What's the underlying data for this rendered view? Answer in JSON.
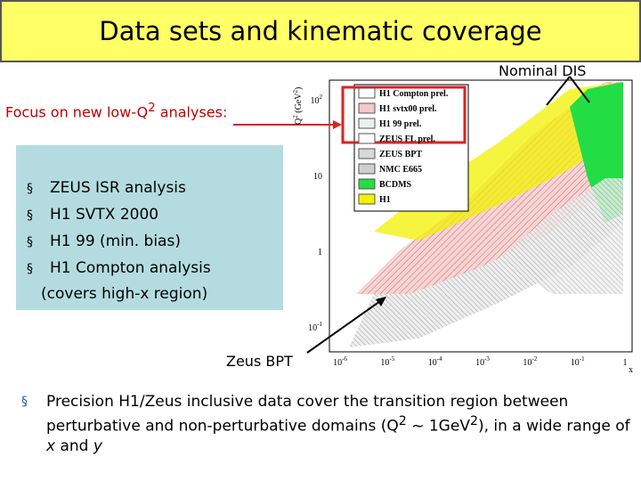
{
  "title": "Data sets and kinematic coverage",
  "annotations": {
    "nominal_dis": "Nominal DIS",
    "zeus_bpt": "Zeus BPT",
    "focus": {
      "text": "Focus on new low-Q",
      "sup": "2",
      "tail": " analyses:"
    }
  },
  "box": {
    "items": [
      "ZEUS ISR analysis",
      "H1 SVTX 2000",
      "H1 99  (min. bias)",
      "H1 Compton analysis"
    ],
    "note": "(covers high-x region)"
  },
  "plot": {
    "y_label": {
      "text": "Q",
      "sup": "2",
      "tail": " (GeV",
      "sup2": "2",
      "end": ")"
    },
    "x_label": "x",
    "y_ticks": [
      {
        "base": "10",
        "exp": "2"
      },
      {
        "base": "10"
      },
      {
        "base": "1"
      },
      {
        "base": "10",
        "exp": "-1"
      }
    ],
    "x_ticks": [
      {
        "base": "10",
        "exp": "-6"
      },
      {
        "base": "10",
        "exp": "-5"
      },
      {
        "base": "10",
        "exp": "-4"
      },
      {
        "base": "10",
        "exp": "-3"
      },
      {
        "base": "10",
        "exp": "-2"
      },
      {
        "base": "10",
        "exp": "-1"
      },
      {
        "base": "1"
      }
    ],
    "legend": [
      {
        "label": "H1 Compton prel.",
        "color": "#ffffff"
      },
      {
        "label": "H1 svtx00 prel.",
        "color": "#f4c8c8"
      },
      {
        "label": "H1 99 prel.",
        "color": "#eeeeee"
      },
      {
        "label": "ZEUS FL prel.",
        "color": "#ffffff"
      },
      {
        "label": "ZEUS BPT",
        "color": "#d8d8d8"
      },
      {
        "label": "NMC E665",
        "color": "#cfcfcf"
      },
      {
        "label": "BCDMS",
        "color": "#22dd44"
      },
      {
        "label": "H1",
        "color": "#f2f200"
      }
    ]
  },
  "bullet": {
    "a": "Precision H1/Zeus inclusive data cover the transition region between perturbative and non-perturbative domains (Q",
    "s1": "2",
    "b": " ~ 1GeV",
    "s2": "2",
    "c": "), in a wide range of ",
    "x": "x",
    "d": " and ",
    "y": "y"
  }
}
